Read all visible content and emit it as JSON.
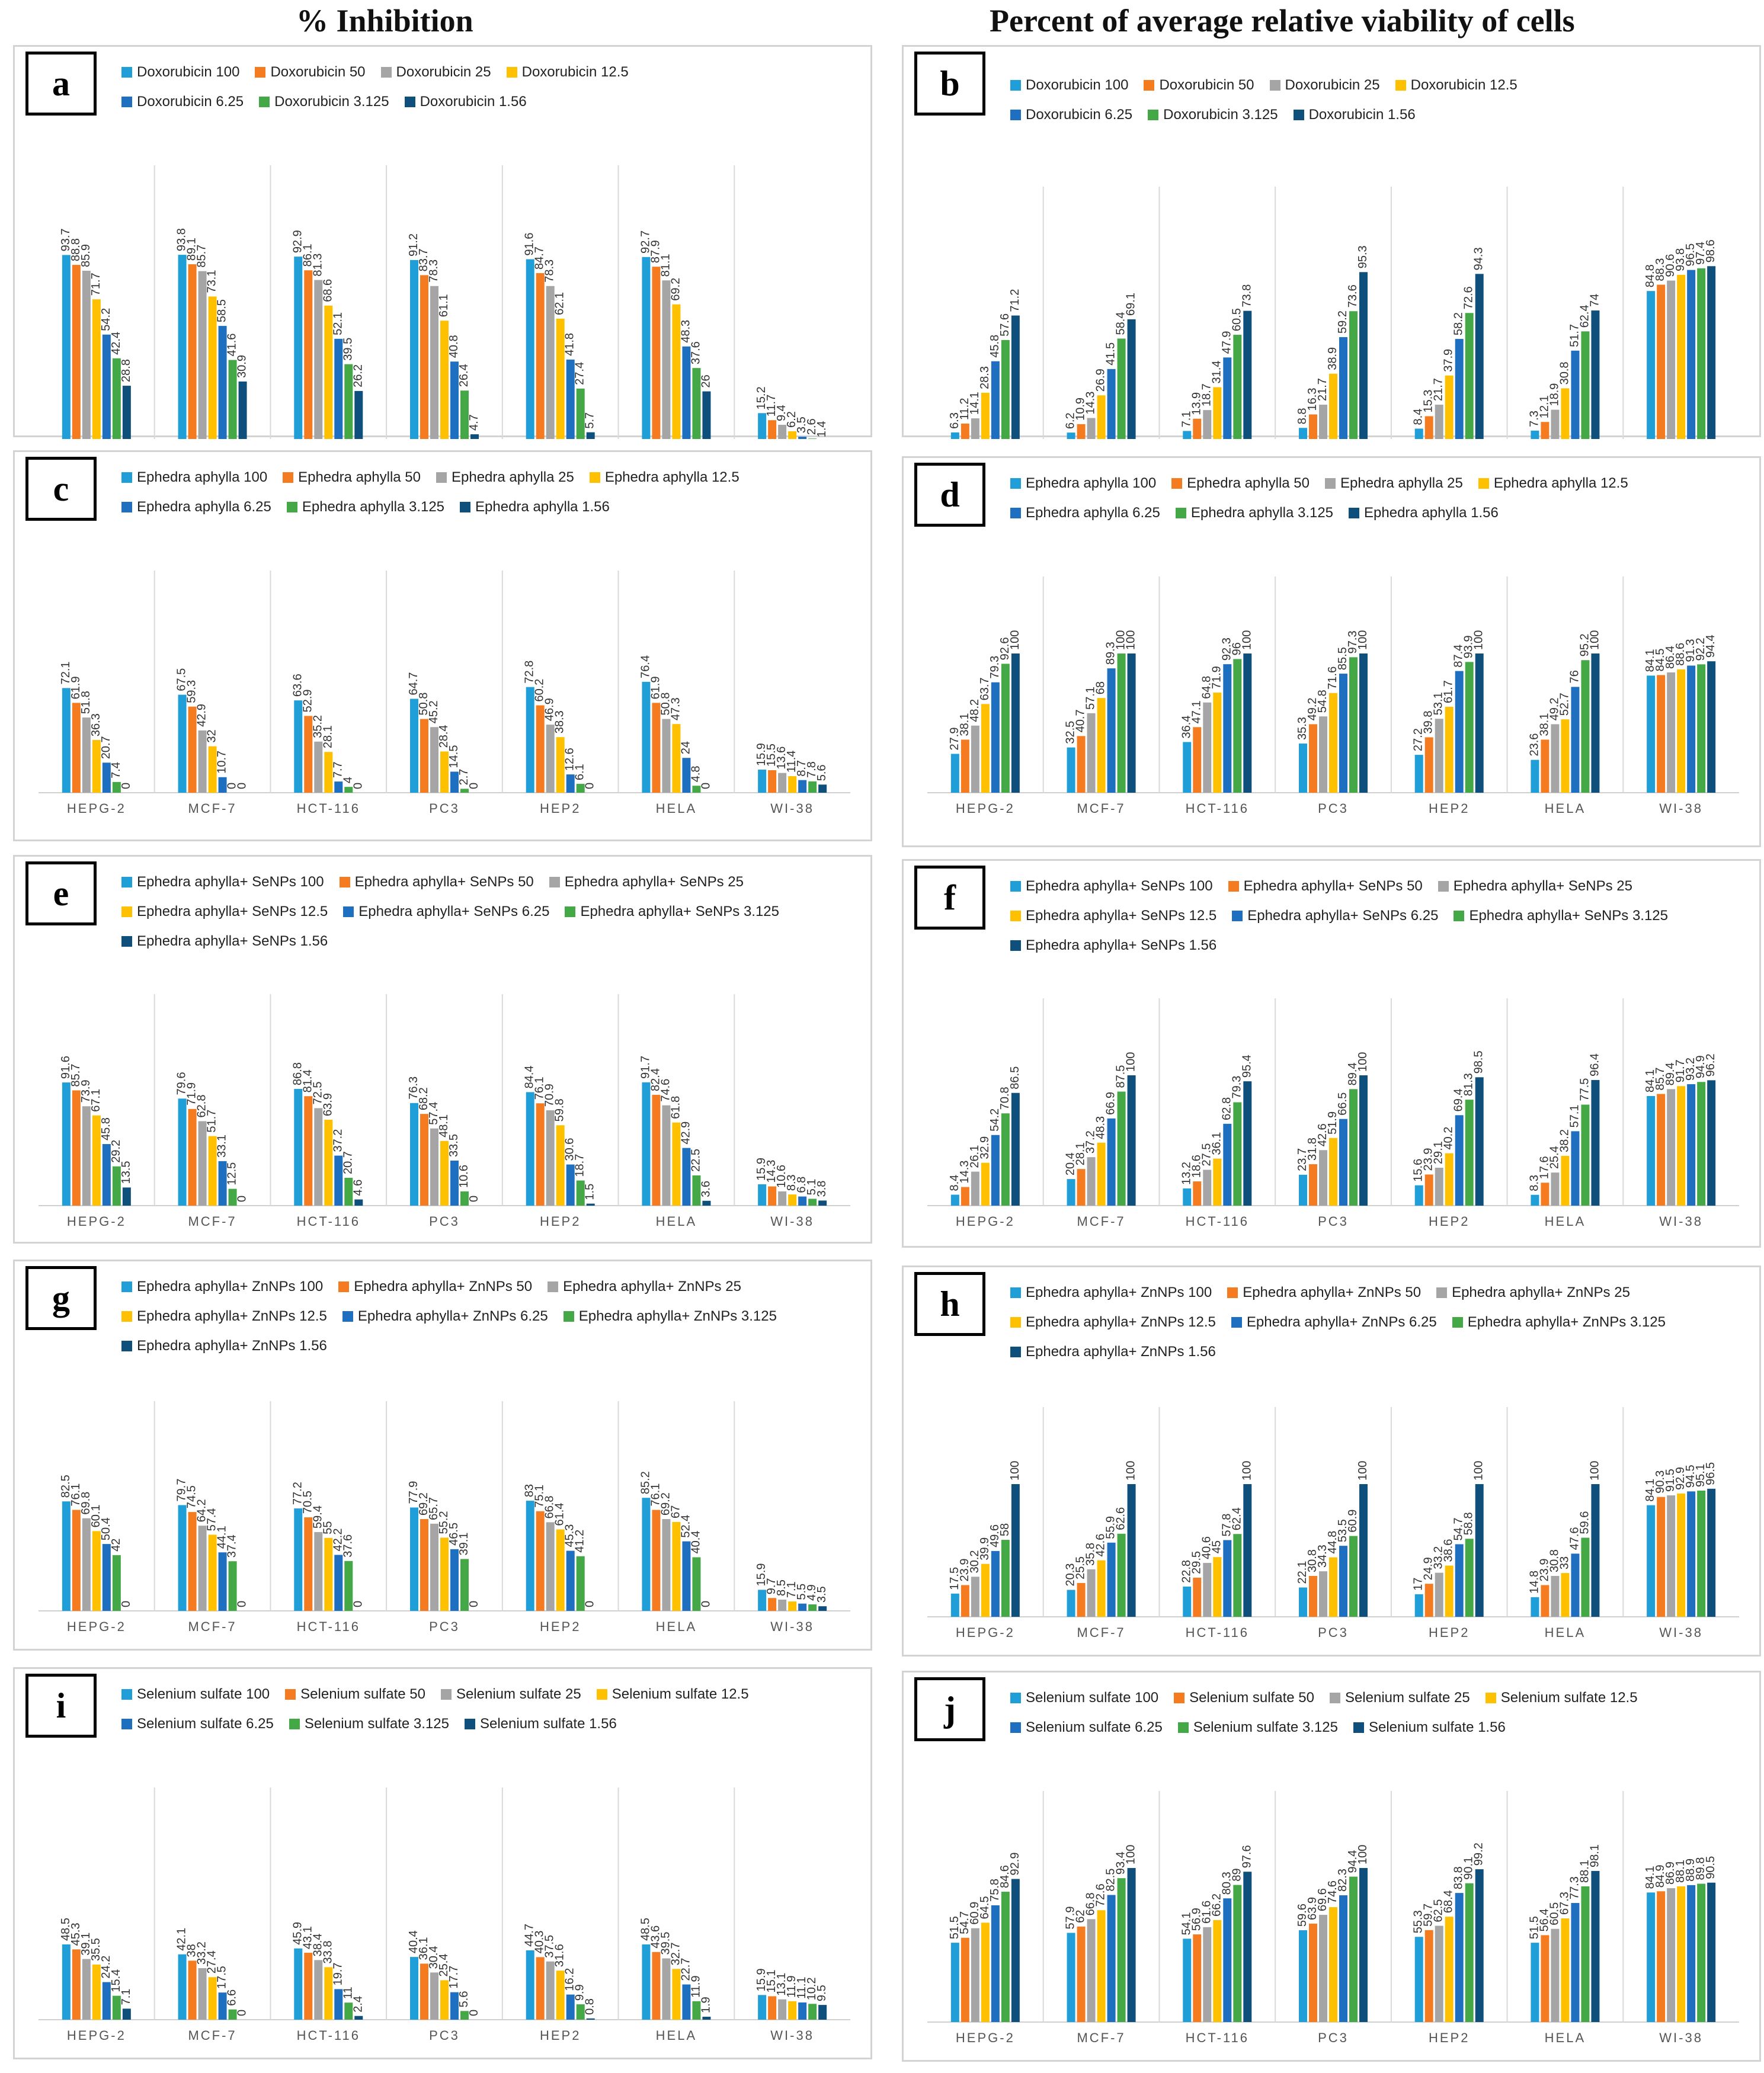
{
  "titles": {
    "left": "% Inhibition",
    "right": "Percent of average relative viability of cells"
  },
  "colors": [
    "#1f9ed8",
    "#f47b20",
    "#a5a5a5",
    "#ffc000",
    "#1f6fc0",
    "#43a845",
    "#0f4f7c"
  ],
  "chart_data": [
    {
      "id": "a",
      "type": "bar",
      "title": "% Inhibition",
      "categories": [
        "HEPG-2",
        "MCF-7",
        "HCT-116",
        "PC3",
        "HEP2",
        "HELA",
        "WI-38"
      ],
      "ylim": [
        0,
        100
      ],
      "series": [
        {
          "name": "Doxorubicin 100",
          "values": [
            93.7,
            93.8,
            92.9,
            91.2,
            91.6,
            92.7,
            15.2
          ]
        },
        {
          "name": "Doxorubicin 50",
          "values": [
            88.8,
            89.1,
            86.1,
            83.7,
            84.7,
            87.9,
            11.7
          ]
        },
        {
          "name": "Doxorubicin 25",
          "values": [
            85.9,
            85.7,
            81.3,
            78.3,
            78.3,
            81.1,
            9.4
          ]
        },
        {
          "name": "Doxorubicin 12.5",
          "values": [
            71.7,
            73.1,
            68.6,
            61.1,
            62.1,
            69.2,
            6.2
          ]
        },
        {
          "name": "Doxorubicin 6.25",
          "values": [
            54.2,
            58.5,
            52.1,
            40.8,
            41.8,
            48.3,
            3.5
          ]
        },
        {
          "name": "Doxorubicin 3.125",
          "values": [
            42.4,
            41.6,
            39.5,
            26.4,
            27.4,
            37.6,
            2.6
          ]
        },
        {
          "name": "Doxorubicin 1.56",
          "values": [
            28.8,
            30.9,
            26.2,
            4.7,
            5.7,
            26,
            1.4
          ]
        }
      ]
    },
    {
      "id": "b",
      "type": "bar",
      "title": "Percent of average relative viability of cells",
      "categories": [
        "HEPG-2",
        "MCF-7",
        "HCT-116",
        "PC3",
        "HEP2",
        "HELA",
        "WI-38"
      ],
      "ylim": [
        0,
        100
      ],
      "series": [
        {
          "name": "Doxorubicin 100",
          "values": [
            6.3,
            6.2,
            7.1,
            8.8,
            8.4,
            7.3,
            84.8
          ]
        },
        {
          "name": "Doxorubicin 50",
          "values": [
            11.2,
            10.9,
            13.9,
            16.3,
            15.3,
            12.1,
            88.3
          ]
        },
        {
          "name": "Doxorubicin 25",
          "values": [
            14.1,
            14.3,
            18.7,
            21.7,
            21.7,
            18.9,
            90.6
          ]
        },
        {
          "name": "Doxorubicin 12.5",
          "values": [
            28.3,
            26.9,
            31.4,
            38.9,
            37.9,
            30.8,
            93.8
          ]
        },
        {
          "name": "Doxorubicin 6.25",
          "values": [
            45.8,
            41.5,
            47.9,
            59.2,
            58.2,
            51.7,
            96.5
          ]
        },
        {
          "name": "Doxorubicin 3.125",
          "values": [
            57.6,
            58.4,
            60.5,
            73.6,
            72.6,
            62.4,
            97.4
          ]
        },
        {
          "name": "Doxorubicin 1.56",
          "values": [
            71.2,
            69.1,
            73.8,
            95.3,
            94.3,
            74,
            98.6
          ]
        }
      ]
    },
    {
      "id": "c",
      "type": "bar",
      "title": "% Inhibition",
      "categories": [
        "HEPG-2",
        "MCF-7",
        "HCT-116",
        "PC3",
        "HEP2",
        "HELA",
        "WI-38"
      ],
      "ylim": [
        0,
        100
      ],
      "series": [
        {
          "name": "Ephedra aphylla 100",
          "values": [
            72.1,
            67.5,
            63.6,
            64.7,
            72.8,
            76.4,
            15.9
          ]
        },
        {
          "name": "Ephedra aphylla 50",
          "values": [
            61.9,
            59.3,
            52.9,
            50.8,
            60.2,
            61.9,
            15.5
          ]
        },
        {
          "name": "Ephedra aphylla 25",
          "values": [
            51.8,
            42.9,
            35.2,
            45.2,
            46.9,
            50.8,
            13.6
          ]
        },
        {
          "name": "Ephedra aphylla 12.5",
          "values": [
            36.3,
            32,
            28.1,
            28.4,
            38.3,
            47.3,
            11.4
          ]
        },
        {
          "name": "Ephedra aphylla 6.25",
          "values": [
            20.7,
            10.7,
            7.7,
            14.5,
            12.6,
            24,
            8.7
          ]
        },
        {
          "name": "Ephedra aphylla 3.125",
          "values": [
            7.4,
            0,
            4,
            2.7,
            6.1,
            4.8,
            7.8
          ]
        },
        {
          "name": "Ephedra aphylla 1.56",
          "values": [
            0,
            0,
            0,
            0,
            0,
            0,
            5.6
          ]
        }
      ]
    },
    {
      "id": "d",
      "type": "bar",
      "title": "Percent of average relative viability of cells",
      "categories": [
        "HEPG-2",
        "MCF-7",
        "HCT-116",
        "PC3",
        "HEP2",
        "HELA",
        "WI-38"
      ],
      "ylim": [
        0,
        100
      ],
      "series": [
        {
          "name": "Ephedra aphylla 100",
          "values": [
            27.9,
            32.5,
            36.4,
            35.3,
            27.2,
            23.6,
            84.1
          ]
        },
        {
          "name": "Ephedra aphylla 50",
          "values": [
            38.1,
            40.7,
            47.1,
            49.2,
            39.8,
            38.1,
            84.5
          ]
        },
        {
          "name": "Ephedra aphylla 25",
          "values": [
            48.2,
            57.1,
            64.8,
            54.8,
            53.1,
            49.2,
            86.4
          ]
        },
        {
          "name": "Ephedra aphylla 12.5",
          "values": [
            63.7,
            68,
            71.9,
            71.6,
            61.7,
            52.7,
            88.6
          ]
        },
        {
          "name": "Ephedra aphylla 6.25",
          "values": [
            79.3,
            89.3,
            92.3,
            85.5,
            87.4,
            76,
            91.3
          ]
        },
        {
          "name": "Ephedra aphylla 3.125",
          "values": [
            92.6,
            100,
            96,
            97.3,
            93.9,
            95.2,
            92.2
          ]
        },
        {
          "name": "Ephedra aphylla 1.56",
          "values": [
            100,
            100,
            100,
            100,
            100,
            100,
            94.4
          ]
        }
      ]
    },
    {
      "id": "e",
      "type": "bar",
      "title": "% Inhibition",
      "categories": [
        "HEPG-2",
        "MCF-7",
        "HCT-116",
        "PC3",
        "HEP2",
        "HELA",
        "WI-38"
      ],
      "ylim": [
        0,
        100
      ],
      "series": [
        {
          "name": "Ephedra aphylla+ SeNPs 100",
          "values": [
            91.6,
            79.6,
            86.8,
            76.3,
            84.4,
            91.7,
            15.9
          ]
        },
        {
          "name": "Ephedra aphylla+ SeNPs 50",
          "values": [
            85.7,
            71.9,
            81.4,
            68.2,
            76.1,
            82.4,
            14.3
          ]
        },
        {
          "name": "Ephedra aphylla+ SeNPs 25",
          "values": [
            73.9,
            62.8,
            72.5,
            57.4,
            70.9,
            74.6,
            10.6
          ]
        },
        {
          "name": "Ephedra aphylla+ SeNPs 12.5",
          "values": [
            67.1,
            51.7,
            63.9,
            48.1,
            59.8,
            61.8,
            8.3
          ]
        },
        {
          "name": "Ephedra aphylla+ SeNPs 6.25",
          "values": [
            45.8,
            33.1,
            37.2,
            33.5,
            30.6,
            42.9,
            6.8
          ]
        },
        {
          "name": "Ephedra aphylla+ SeNPs 3.125",
          "values": [
            29.2,
            12.5,
            20.7,
            10.6,
            18.7,
            22.5,
            5.1
          ]
        },
        {
          "name": "Ephedra aphylla+ SeNPs 1.56",
          "values": [
            13.5,
            0,
            4.6,
            0,
            1.5,
            3.6,
            3.8
          ]
        }
      ]
    },
    {
      "id": "f",
      "type": "bar",
      "title": "Percent of average relative viability of cells",
      "categories": [
        "HEPG-2",
        "MCF-7",
        "HCT-116",
        "PC3",
        "HEP2",
        "HELA",
        "WI-38"
      ],
      "ylim": [
        0,
        100
      ],
      "series": [
        {
          "name": "Ephedra aphylla+ SeNPs 100",
          "values": [
            8.4,
            20.4,
            13.2,
            23.7,
            15.6,
            8.3,
            84.1
          ]
        },
        {
          "name": "Ephedra aphylla+ SeNPs 50",
          "values": [
            14.3,
            28.1,
            18.6,
            31.8,
            23.9,
            17.6,
            85.7
          ]
        },
        {
          "name": "Ephedra aphylla+ SeNPs 25",
          "values": [
            26.1,
            37.2,
            27.5,
            42.6,
            29.1,
            25.4,
            89.4
          ]
        },
        {
          "name": "Ephedra aphylla+ SeNPs 12.5",
          "values": [
            32.9,
            48.3,
            36.1,
            51.9,
            40.2,
            38.2,
            91.7
          ]
        },
        {
          "name": "Ephedra aphylla+ SeNPs 6.25",
          "values": [
            54.2,
            66.9,
            62.8,
            66.5,
            69.4,
            57.1,
            93.2
          ]
        },
        {
          "name": "Ephedra aphylla+ SeNPs 3.125",
          "values": [
            70.8,
            87.5,
            79.3,
            89.4,
            81.3,
            77.5,
            94.9
          ]
        },
        {
          "name": "Ephedra aphylla+ SeNPs 1.56",
          "values": [
            86.5,
            100,
            95.4,
            100,
            98.5,
            96.4,
            96.2
          ]
        }
      ]
    },
    {
      "id": "g",
      "type": "bar",
      "title": "% Inhibition",
      "categories": [
        "HEPG-2",
        "MCF-7",
        "HCT-116",
        "PC3",
        "HEP2",
        "HELA",
        "WI-38"
      ],
      "ylim": [
        0,
        100
      ],
      "series": [
        {
          "name": "Ephedra aphylla+ ZnNPs 100",
          "values": [
            82.5,
            79.7,
            77.2,
            77.9,
            83,
            85.2,
            15.9
          ]
        },
        {
          "name": "Ephedra aphylla+ ZnNPs 50",
          "values": [
            76.1,
            74.5,
            70.5,
            69.2,
            75.1,
            76.1,
            9.7
          ]
        },
        {
          "name": "Ephedra aphylla+ ZnNPs 25",
          "values": [
            69.8,
            64.2,
            59.4,
            65.7,
            66.8,
            69.2,
            8.5
          ]
        },
        {
          "name": "Ephedra aphylla+ ZnNPs 12.5",
          "values": [
            60.1,
            57.4,
            55,
            55.2,
            61.4,
            67,
            7.1
          ]
        },
        {
          "name": "Ephedra aphylla+ ZnNPs 6.25",
          "values": [
            50.4,
            44.1,
            42.2,
            46.5,
            45.3,
            52.4,
            5.5
          ]
        },
        {
          "name": "Ephedra aphylla+ ZnNPs 3.125",
          "values": [
            42,
            37.4,
            37.6,
            39.1,
            41.2,
            40.4,
            4.9
          ]
        },
        {
          "name": "Ephedra aphylla+ ZnNPs 1.56",
          "values": [
            0,
            0,
            0,
            0,
            0,
            0,
            3.5
          ]
        }
      ]
    },
    {
      "id": "h",
      "type": "bar",
      "title": "Percent of average relative viability of cells",
      "categories": [
        "HEPG-2",
        "MCF-7",
        "HCT-116",
        "PC3",
        "HEP2",
        "HELA",
        "WI-38"
      ],
      "ylim": [
        0,
        100
      ],
      "series": [
        {
          "name": "Ephedra aphylla+ ZnNPs 100",
          "values": [
            17.5,
            20.3,
            22.8,
            22.1,
            17,
            14.8,
            84.1
          ]
        },
        {
          "name": "Ephedra aphylla+ ZnNPs 50",
          "values": [
            23.9,
            25.5,
            29.5,
            30.8,
            24.9,
            23.9,
            90.3
          ]
        },
        {
          "name": "Ephedra aphylla+ ZnNPs 25",
          "values": [
            30.2,
            35.8,
            40.6,
            34.3,
            33.2,
            30.8,
            91.5
          ]
        },
        {
          "name": "Ephedra aphylla+ ZnNPs 12.5",
          "values": [
            39.9,
            42.6,
            45,
            44.8,
            38.6,
            33,
            92.9
          ]
        },
        {
          "name": "Ephedra aphylla+ ZnNPs 6.25",
          "values": [
            49.6,
            55.9,
            57.8,
            53.5,
            54.7,
            47.6,
            94.5
          ]
        },
        {
          "name": "Ephedra aphylla+ ZnNPs 3.125",
          "values": [
            58,
            62.6,
            62.4,
            60.9,
            58.8,
            59.6,
            95.1
          ]
        },
        {
          "name": "Ephedra aphylla+ ZnNPs 1.56",
          "values": [
            100,
            100,
            100,
            100,
            100,
            100,
            96.5
          ]
        }
      ]
    },
    {
      "id": "i",
      "type": "bar",
      "title": "% Inhibition",
      "categories": [
        "HEPG-2",
        "MCF-7",
        "HCT-116",
        "PC3",
        "HEP2",
        "HELA",
        "WI-38"
      ],
      "ylim": [
        0,
        100
      ],
      "series": [
        {
          "name": "Selenium sulfate 100",
          "values": [
            48.5,
            42.1,
            45.9,
            40.4,
            44.7,
            48.5,
            15.9
          ]
        },
        {
          "name": "Selenium sulfate 50",
          "values": [
            45.3,
            38,
            43.1,
            36.1,
            40.3,
            43.6,
            15.1
          ]
        },
        {
          "name": "Selenium sulfate 25",
          "values": [
            39.1,
            33.2,
            38.4,
            30.4,
            37.5,
            39.5,
            13.1
          ]
        },
        {
          "name": "Selenium sulfate 12.5",
          "values": [
            35.5,
            27.4,
            33.8,
            25.4,
            31.6,
            32.7,
            11.9
          ]
        },
        {
          "name": "Selenium sulfate 6.25",
          "values": [
            24.2,
            17.5,
            19.7,
            17.7,
            16.2,
            22.7,
            11.1
          ]
        },
        {
          "name": "Selenium sulfate 3.125",
          "values": [
            15.4,
            6.6,
            11,
            5.6,
            9.9,
            11.9,
            10.2
          ]
        },
        {
          "name": "Selenium sulfate 1.56",
          "values": [
            7.1,
            0,
            2.4,
            0,
            0.8,
            1.9,
            9.5
          ]
        }
      ]
    },
    {
      "id": "j",
      "type": "bar",
      "title": "Percent of average relative viability of cells",
      "categories": [
        "HEPG-2",
        "MCF-7",
        "HCT-116",
        "PC3",
        "HEP2",
        "HELA",
        "WI-38"
      ],
      "ylim": [
        0,
        100
      ],
      "series": [
        {
          "name": "Selenium sulfate 100",
          "values": [
            51.5,
            57.9,
            54.1,
            59.6,
            55.3,
            51.5,
            84.1
          ]
        },
        {
          "name": "Selenium sulfate 50",
          "values": [
            54.7,
            62,
            56.9,
            63.9,
            59.7,
            56.4,
            84.9
          ]
        },
        {
          "name": "Selenium sulfate 25",
          "values": [
            60.9,
            66.8,
            61.6,
            69.6,
            62.5,
            60.5,
            86.9
          ]
        },
        {
          "name": "Selenium sulfate 12.5",
          "values": [
            64.5,
            72.6,
            66.2,
            74.6,
            68.4,
            67.3,
            88.1
          ]
        },
        {
          "name": "Selenium sulfate 6.25",
          "values": [
            75.8,
            82.5,
            80.3,
            82.3,
            83.8,
            77.3,
            88.9
          ]
        },
        {
          "name": "Selenium sulfate 3.125",
          "values": [
            84.6,
            93.4,
            89,
            94.4,
            90.1,
            88.1,
            89.8
          ]
        },
        {
          "name": "Selenium sulfate 1.56",
          "values": [
            92.9,
            100,
            97.6,
            100,
            99.2,
            98.1,
            90.5
          ]
        }
      ]
    }
  ]
}
